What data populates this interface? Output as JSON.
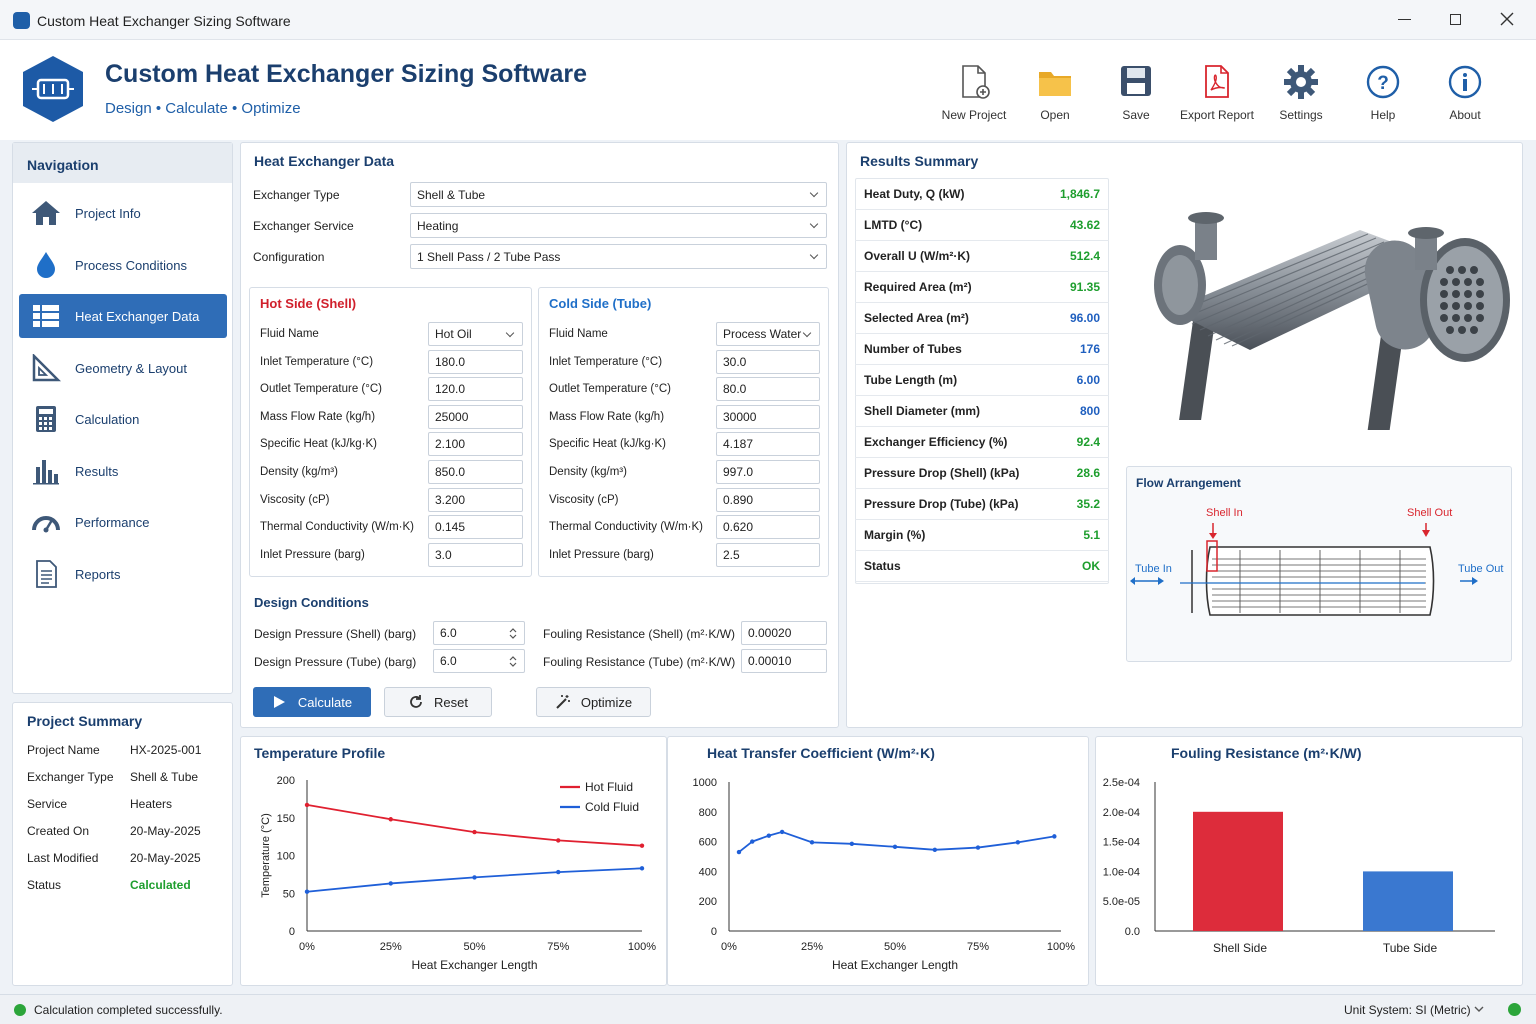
{
  "window": {
    "title": "Custom Heat Exchanger Sizing Software"
  },
  "header": {
    "title": "Custom Heat Exchanger Sizing Software",
    "subtitle": "Design • Calculate • Optimize"
  },
  "toolbar": [
    {
      "label": "New Project",
      "icon": "new-file-icon"
    },
    {
      "label": "Open",
      "icon": "folder-icon"
    },
    {
      "label": "Save",
      "icon": "save-icon"
    },
    {
      "label": "Export Report",
      "icon": "pdf-icon"
    },
    {
      "label": "Settings",
      "icon": "gear-icon"
    },
    {
      "label": "Help",
      "icon": "help-icon"
    },
    {
      "label": "About",
      "icon": "info-icon"
    }
  ],
  "nav": {
    "title": "Navigation",
    "items": [
      {
        "label": "Project Info",
        "icon": "home-icon"
      },
      {
        "label": "Process Conditions",
        "icon": "drop-icon"
      },
      {
        "label": "Heat Exchanger Data",
        "icon": "grid-icon"
      },
      {
        "label": "Geometry & Layout",
        "icon": "ruler-icon"
      },
      {
        "label": "Calculation",
        "icon": "calculator-icon"
      },
      {
        "label": "Results",
        "icon": "bar-chart-icon"
      },
      {
        "label": "Performance",
        "icon": "gauge-icon"
      },
      {
        "label": "Reports",
        "icon": "document-icon"
      }
    ]
  },
  "project_summary": {
    "title": "Project Summary",
    "rows": [
      {
        "label": "Project Name",
        "value": "HX-2025-001"
      },
      {
        "label": "Exchanger Type",
        "value": "Shell & Tube"
      },
      {
        "label": "Service",
        "value": "Heaters"
      },
      {
        "label": "Created On",
        "value": "20-May-2025"
      },
      {
        "label": "Last Modified",
        "value": "20-May-2025"
      },
      {
        "label": "Status",
        "value": "Calculated"
      }
    ]
  },
  "hx_data": {
    "title": "Heat Exchanger Data",
    "fields": [
      {
        "label": "Exchanger Type",
        "value": "Shell & Tube"
      },
      {
        "label": "Exchanger Service",
        "value": "Heating"
      },
      {
        "label": "Configuration",
        "value": "1 Shell Pass / 2 Tube Pass"
      }
    ]
  },
  "hot_side": {
    "title": "Hot Side (Shell)",
    "rows": [
      {
        "label": "Fluid Name",
        "value": "Hot Oil"
      },
      {
        "label": "Inlet Temperature (°C)",
        "value": "180.0"
      },
      {
        "label": "Outlet Temperature (°C)",
        "value": "120.0"
      },
      {
        "label": "Mass Flow Rate (kg/h)",
        "value": "25000"
      },
      {
        "label": "Specific Heat (kJ/kg·K)",
        "value": "2.100"
      },
      {
        "label": "Density (kg/m³)",
        "value": "850.0"
      },
      {
        "label": "Viscosity (cP)",
        "value": "3.200"
      },
      {
        "label": "Thermal Conductivity (W/m·K)",
        "value": "0.145"
      },
      {
        "label": "Inlet Pressure (barg)",
        "value": "3.0"
      }
    ]
  },
  "cold_side": {
    "title": "Cold Side (Tube)",
    "rows": [
      {
        "label": "Fluid Name",
        "value": "Process Water"
      },
      {
        "label": "Inlet Temperature (°C)",
        "value": "30.0"
      },
      {
        "label": "Outlet Temperature (°C)",
        "value": "80.0"
      },
      {
        "label": "Mass Flow Rate (kg/h)",
        "value": "30000"
      },
      {
        "label": "Specific Heat (kJ/kg·K)",
        "value": "4.187"
      },
      {
        "label": "Density (kg/m³)",
        "value": "997.0"
      },
      {
        "label": "Viscosity (cP)",
        "value": "0.890"
      },
      {
        "label": "Thermal Conductivity (W/m·K)",
        "value": "0.620"
      },
      {
        "label": "Inlet Pressure (barg)",
        "value": "2.5"
      }
    ]
  },
  "design": {
    "title": "Design Conditions",
    "rows": [
      {
        "label": "Design Pressure (Shell) (barg)",
        "value": "6.0",
        "flabel": "Fouling Resistance (Shell) (m²·K/W)",
        "fvalue": "0.00020"
      },
      {
        "label": "Design Pressure (Tube) (barg)",
        "value": "6.0",
        "flabel": "Fouling Resistance (Tube) (m²·K/W)",
        "fvalue": "0.00010"
      }
    ],
    "buttons": {
      "calculate": "Calculate",
      "reset": "Reset",
      "optimize": "Optimize"
    }
  },
  "results": {
    "title": "Results Summary",
    "rows": [
      {
        "label": "Heat Duty, Q (kW)",
        "value": "1,846.7",
        "color": "#1e9e2e"
      },
      {
        "label": "LMTD (°C)",
        "value": "43.62",
        "color": "#1e9e2e"
      },
      {
        "label": "Overall U (W/m²·K)",
        "value": "512.4",
        "color": "#1e9e2e"
      },
      {
        "label": "Required Area (m²)",
        "value": "91.35",
        "color": "#1e9e2e"
      },
      {
        "label": "Selected Area (m²)",
        "value": "96.00",
        "color": "#1f5fbf"
      },
      {
        "label": "Number of Tubes",
        "value": "176",
        "color": "#1f5fbf"
      },
      {
        "label": "Tube Length (m)",
        "value": "6.00",
        "color": "#1f5fbf"
      },
      {
        "label": "Shell Diameter (mm)",
        "value": "800",
        "color": "#1f5fbf"
      },
      {
        "label": "Exchanger Efficiency (%)",
        "value": "92.4",
        "color": "#1e9e2e"
      },
      {
        "label": "Pressure Drop (Shell) (kPa)",
        "value": "28.6",
        "color": "#1e9e2e"
      },
      {
        "label": "Pressure Drop (Tube) (kPa)",
        "value": "35.2",
        "color": "#1e9e2e"
      },
      {
        "label": "Margin (%)",
        "value": "5.1",
        "color": "#1e9e2e"
      },
      {
        "label": "Status",
        "value": "OK",
        "color": "#1e9e2e"
      }
    ]
  },
  "flow": {
    "title": "Flow Arrangement",
    "shell_in": "Shell In",
    "shell_out": "Shell Out",
    "tube_in": "Tube In",
    "tube_out": "Tube Out"
  },
  "colors": {
    "accent": "#2f6db7",
    "title": "#1b3f6e",
    "green": "#1e9e2e",
    "hot": "#e02030",
    "cold": "#1f5fd8"
  },
  "chart_data": [
    {
      "type": "line",
      "title": "Temperature Profile",
      "xlabel": "Heat Exchanger Length",
      "ylabel": "Temperature (°C)",
      "ylim": [
        0,
        200
      ],
      "yticks": [
        "0",
        "50",
        "100",
        "150",
        "200"
      ],
      "xticks": [
        "0%",
        "25%",
        "50%",
        "75%",
        "100%"
      ],
      "x": [
        0,
        25,
        50,
        75,
        100
      ],
      "series": [
        {
          "name": "Hot Fluid",
          "color": "#e02030",
          "values": [
            167,
            148,
            131,
            120,
            113
          ]
        },
        {
          "name": "Cold Fluid",
          "color": "#1f5fd8",
          "values": [
            52,
            63,
            71,
            78,
            83
          ]
        }
      ],
      "legend": "top-right",
      "grid": false
    },
    {
      "type": "line",
      "title": "Heat Transfer Coefficient (W/m²·K)",
      "xlabel": "Heat Exchanger Length",
      "ylabel": "",
      "ylim": [
        0,
        1000
      ],
      "yticks": [
        "0",
        "200",
        "400",
        "600",
        "800",
        "1000"
      ],
      "xticks": [
        "0%",
        "25%",
        "50%",
        "75%",
        "100%"
      ],
      "x": [
        3,
        7,
        12,
        16,
        25,
        37,
        50,
        62,
        75,
        87,
        98
      ],
      "series": [
        {
          "values": [
            530,
            600,
            640,
            665,
            595,
            585,
            565,
            545,
            560,
            595,
            635
          ],
          "color": "#1f5fd8"
        }
      ],
      "grid": false
    },
    {
      "type": "bar",
      "title": "Fouling Resistance (m²·K/W)",
      "categories": [
        "Shell Side",
        "Tube Side"
      ],
      "values": [
        0.0002,
        0.0001
      ],
      "colors": [
        "#dd2c3b",
        "#3a78d0"
      ],
      "ylim": [
        0,
        0.00025
      ],
      "yticks": [
        "0.0",
        "5.0e-05",
        "1.0e-04",
        "1.5e-04",
        "2.0e-04",
        "2.5e-04"
      ],
      "grid": false
    }
  ],
  "status_bar": {
    "message": "Calculation completed successfully.",
    "unit_system": "Unit System: SI (Metric)"
  }
}
